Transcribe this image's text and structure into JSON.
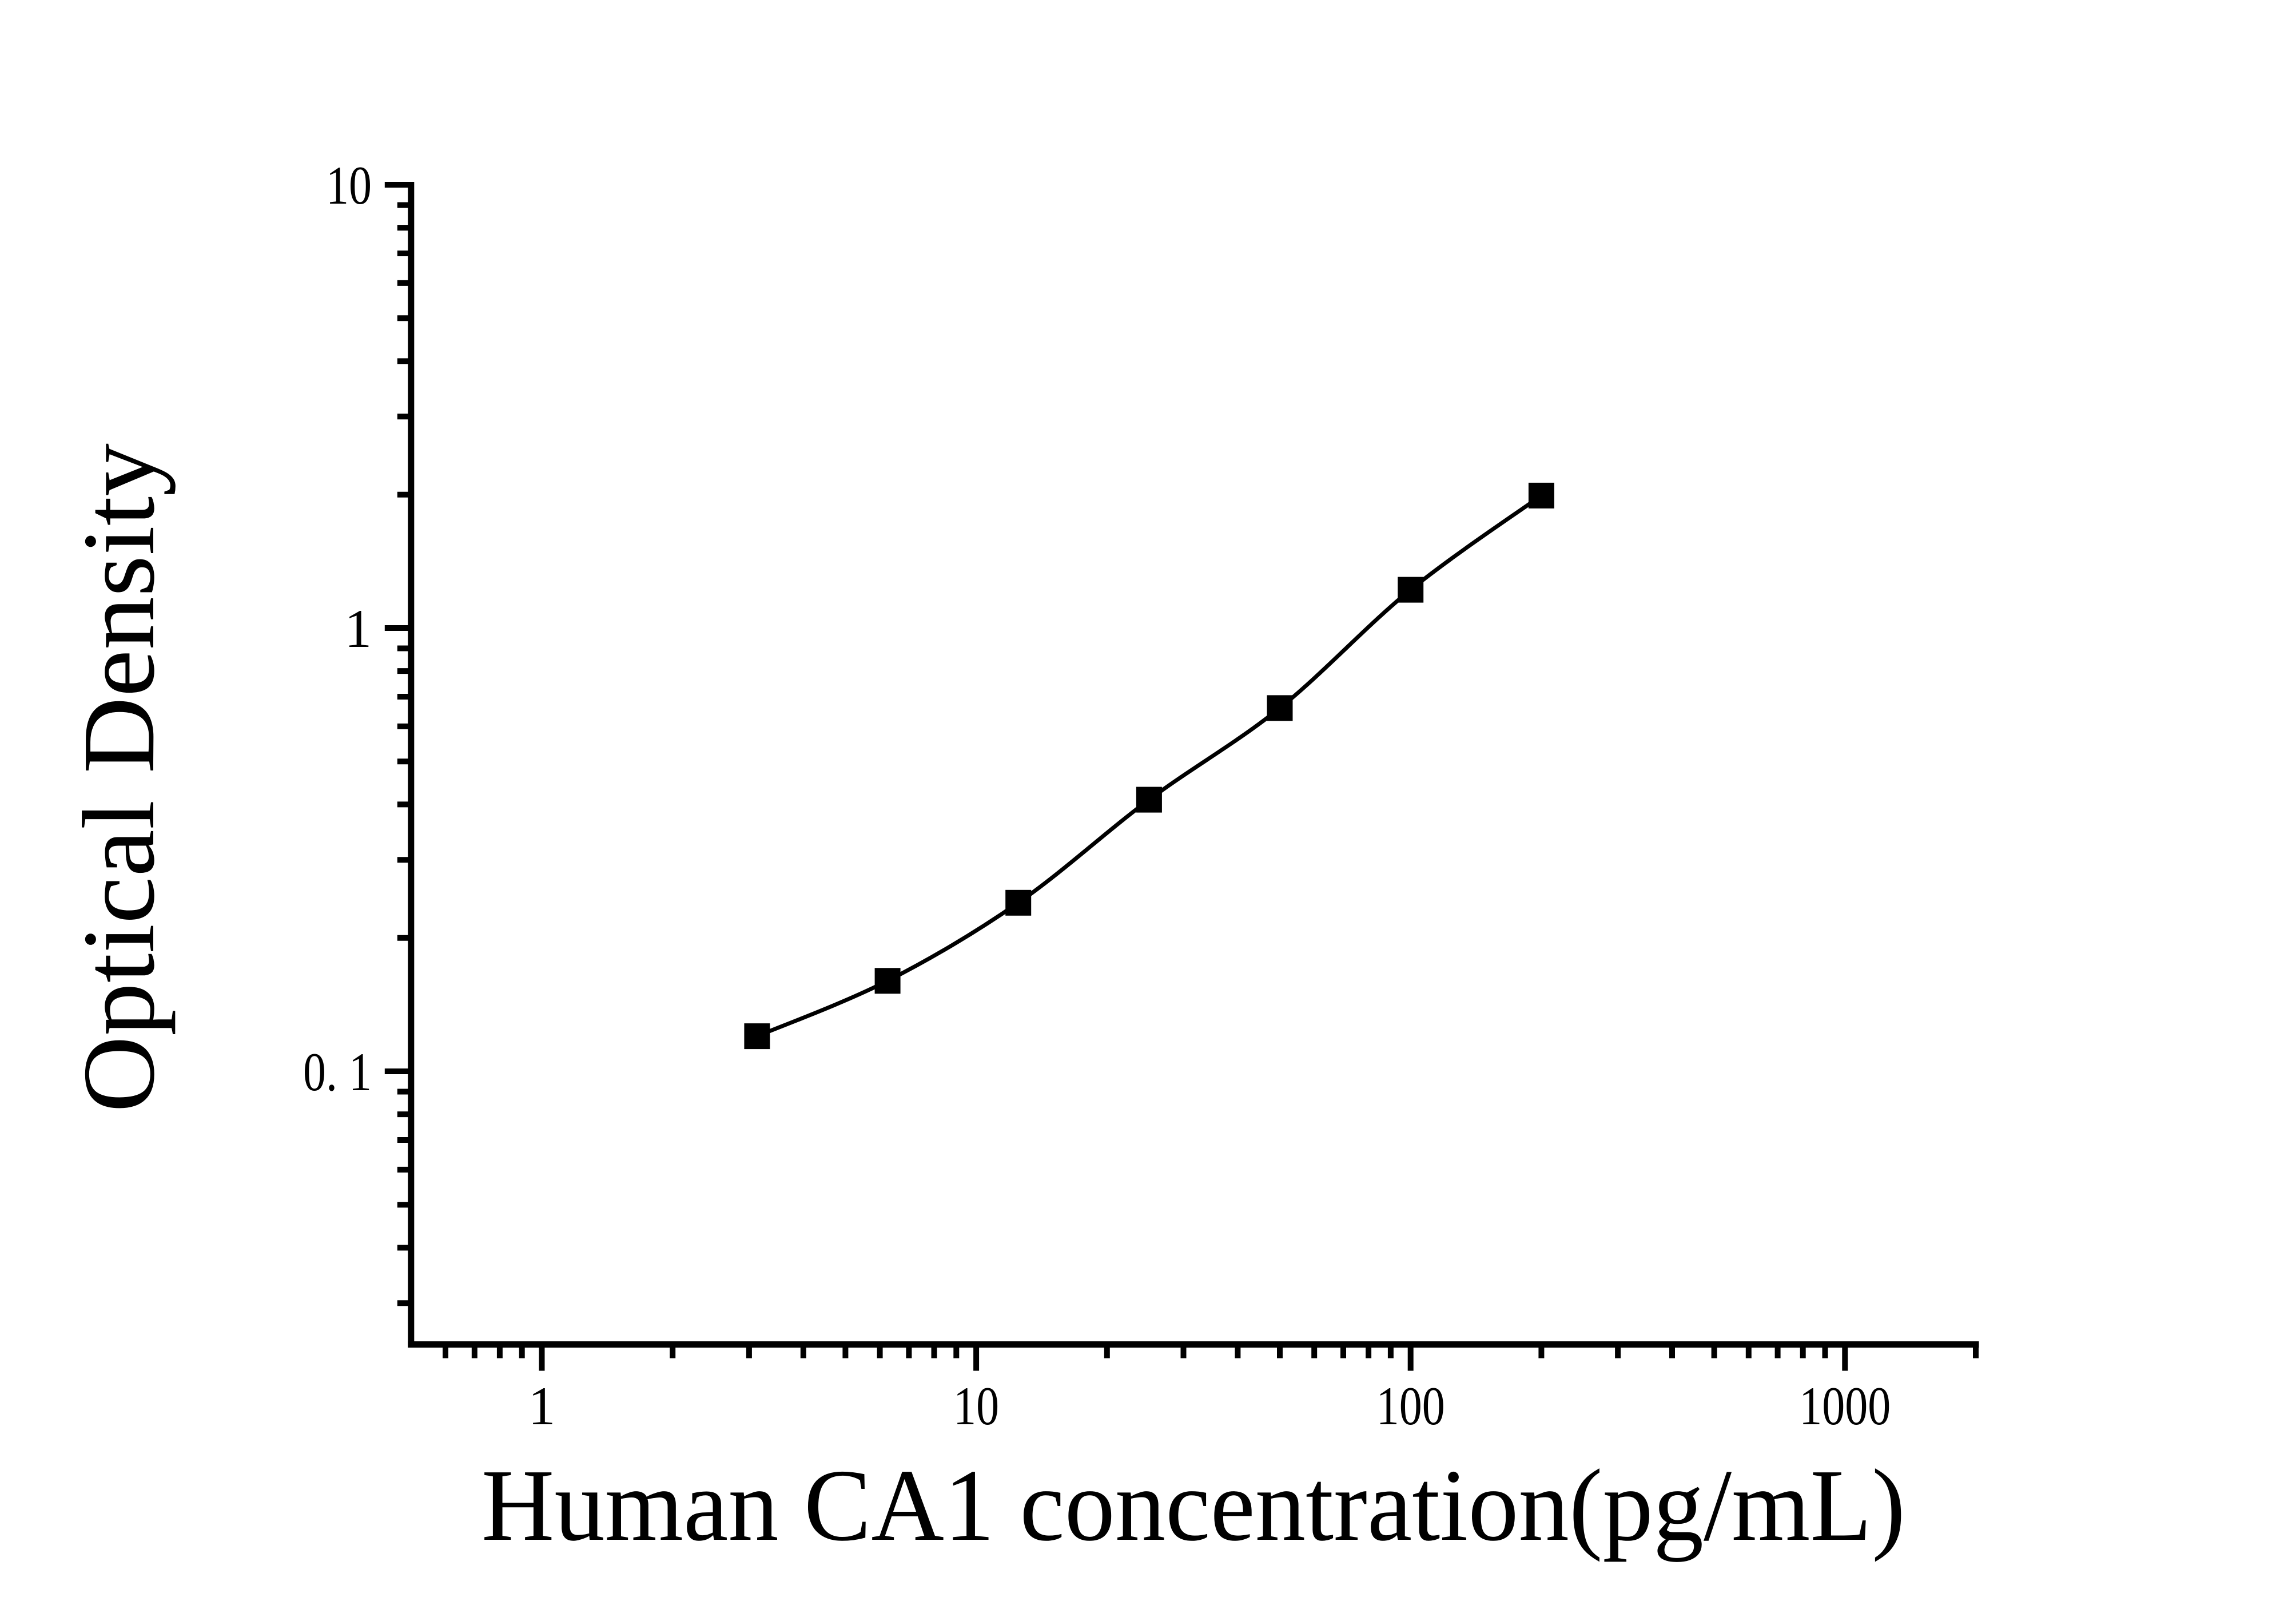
{
  "figure": {
    "background_color": "#ffffff",
    "ink_color": "#000000"
  },
  "chart_data": {
    "type": "scatter",
    "subtype": "standard-curve-with-fitted-line",
    "title": "",
    "xlabel": "Human CA1 concentration(pg/mL)",
    "ylabel": "Optical Density",
    "x_scale": "log",
    "y_scale": "log",
    "xlim": [
      0.5,
      2000
    ],
    "ylim": [
      0.0242,
      10
    ],
    "x_major_ticks": [
      1,
      10,
      100,
      1000
    ],
    "x_major_tick_labels": [
      "1",
      "10",
      "100",
      "1000"
    ],
    "y_major_ticks": [
      0.1,
      1,
      10
    ],
    "y_major_tick_labels": [
      "0. 1",
      "1",
      "10"
    ],
    "grid": false,
    "legend": false,
    "marker": "filled-square",
    "line_style": "smooth",
    "series": [
      {
        "name": "standard-curve",
        "x": [
          3.13,
          6.25,
          12.5,
          25,
          50,
          100,
          200
        ],
        "y": [
          0.12,
          0.16,
          0.24,
          0.41,
          0.66,
          1.22,
          1.99
        ]
      }
    ]
  }
}
